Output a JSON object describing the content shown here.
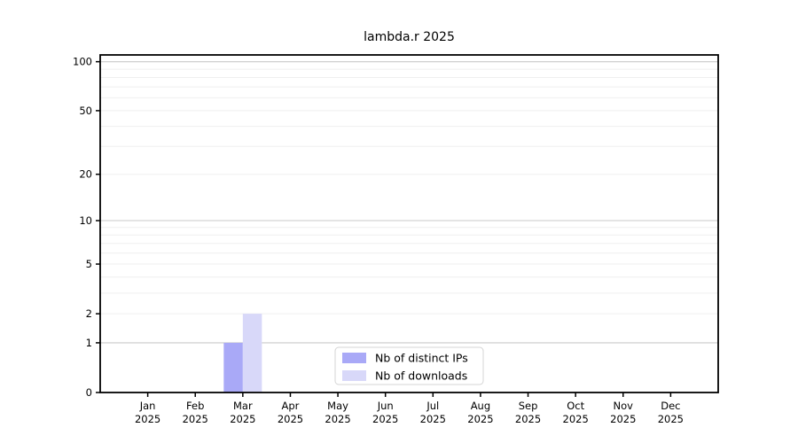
{
  "chart_data": {
    "type": "bar",
    "title": "lambda.r 2025",
    "x_labels": [
      {
        "month": "Jan",
        "year": "2025"
      },
      {
        "month": "Feb",
        "year": "2025"
      },
      {
        "month": "Mar",
        "year": "2025"
      },
      {
        "month": "Apr",
        "year": "2025"
      },
      {
        "month": "May",
        "year": "2025"
      },
      {
        "month": "Jun",
        "year": "2025"
      },
      {
        "month": "Jul",
        "year": "2025"
      },
      {
        "month": "Aug",
        "year": "2025"
      },
      {
        "month": "Sep",
        "year": "2025"
      },
      {
        "month": "Oct",
        "year": "2025"
      },
      {
        "month": "Nov",
        "year": "2025"
      },
      {
        "month": "Dec",
        "year": "2025"
      }
    ],
    "series": [
      {
        "key": "distinct-ips",
        "name": "Nb of distinct IPs",
        "color": "#a9a9f7",
        "values": [
          0,
          0,
          1,
          0,
          0,
          0,
          0,
          0,
          0,
          0,
          0,
          0
        ]
      },
      {
        "key": "downloads",
        "name": "Nb of downloads",
        "color": "#d8d8f9",
        "values": [
          0,
          0,
          2,
          0,
          0,
          0,
          0,
          0,
          0,
          0,
          0,
          0
        ]
      }
    ],
    "y_scale": "log10(value+1)",
    "y_ticks": [
      0,
      1,
      2,
      5,
      10,
      20,
      50,
      100
    ],
    "y_axis_top": 110,
    "y_gridlines_major": [
      1,
      10,
      100
    ],
    "y_gridlines_minor": [
      2,
      3,
      4,
      5,
      6,
      7,
      8,
      9,
      20,
      30,
      40,
      50,
      60,
      70,
      80,
      90
    ],
    "grid": "horizontal",
    "legend": {
      "position": "bottom-center"
    },
    "colors": {
      "spine": "#000000",
      "tick_label": "#000000",
      "grid_major": "#c9c9c9",
      "grid_minor": "#efefef",
      "legend_border": "#d4d4d4",
      "background": "#ffffff"
    }
  }
}
